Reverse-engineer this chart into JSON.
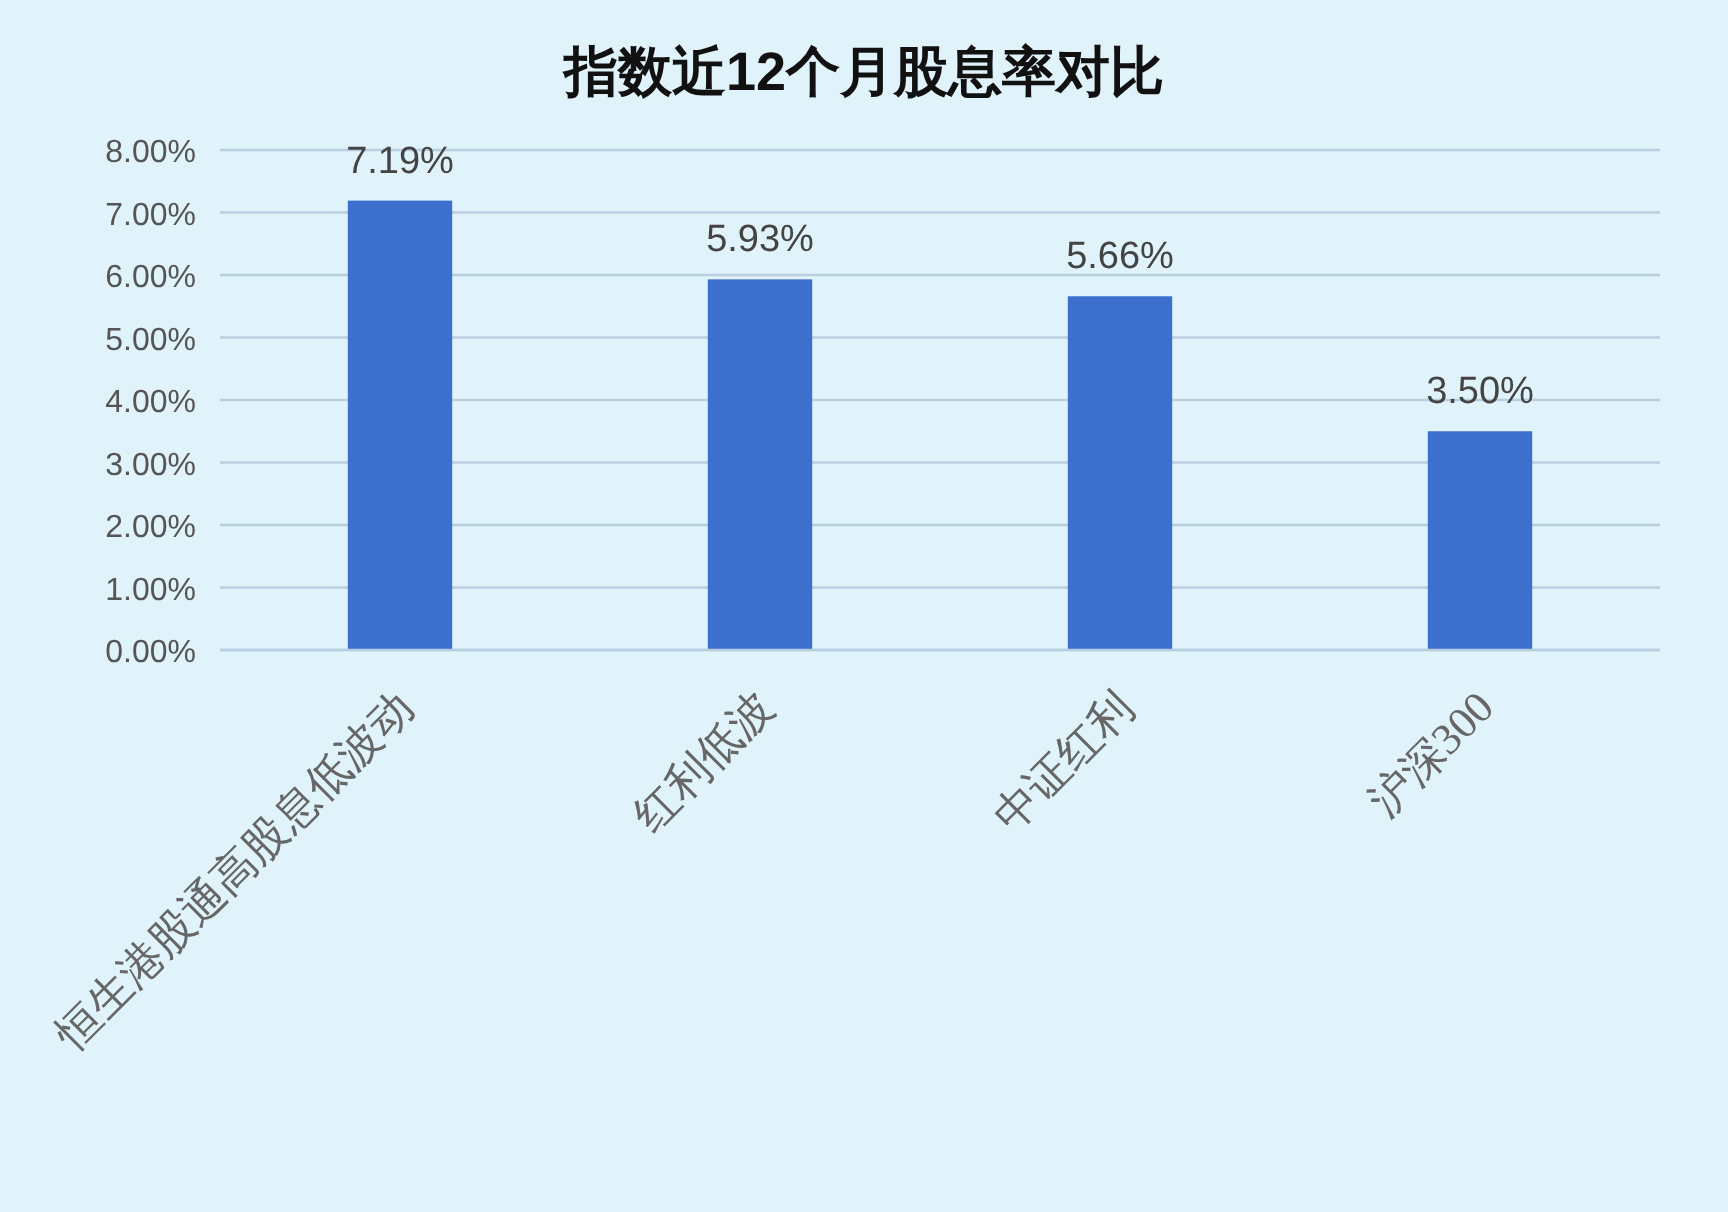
{
  "chart_data": {
    "type": "bar",
    "title": "指数近12个月股息率对比",
    "categories": [
      "恒生港股通高股息低波动",
      "红利低波",
      "中证红利",
      "沪深300"
    ],
    "values": [
      7.19,
      5.93,
      5.66,
      3.5
    ],
    "value_labels": [
      "7.19%",
      "5.93%",
      "5.66%",
      "3.50%"
    ],
    "color": "#3d6fcc",
    "ylim": [
      0,
      8
    ],
    "yticks": [
      {
        "value": 0,
        "label": "0.00%"
      },
      {
        "value": 1,
        "label": "1.00%"
      },
      {
        "value": 2,
        "label": "2.00%"
      },
      {
        "value": 3,
        "label": "3.00%"
      },
      {
        "value": 4,
        "label": "4.00%"
      },
      {
        "value": 5,
        "label": "5.00%"
      },
      {
        "value": 6,
        "label": "6.00%"
      },
      {
        "value": 7,
        "label": "7.00%"
      },
      {
        "value": 8,
        "label": "8.00%"
      }
    ],
    "grid": "y"
  }
}
